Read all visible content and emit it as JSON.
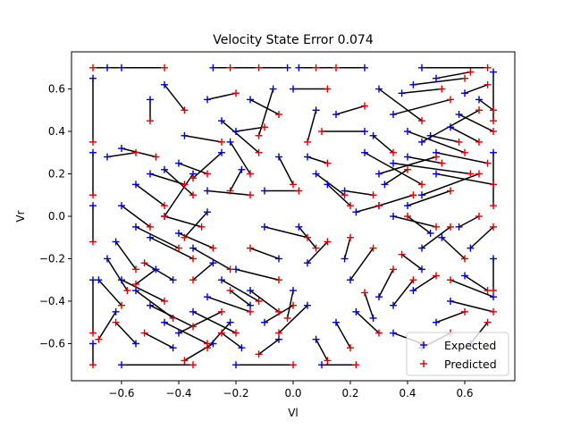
{
  "chart_data": {
    "type": "scatter",
    "title": "Velocity State Error 0.074",
    "xlabel": "Vl",
    "ylabel": "Vr",
    "xlim": [
      -0.775,
      0.775
    ],
    "ylim": [
      -0.775,
      0.775
    ],
    "xticks": [
      "−0.6",
      "−0.4",
      "−0.2",
      "0.0",
      "0.2",
      "0.4",
      "0.6"
    ],
    "yticks": [
      "−0.6",
      "−0.4",
      "−0.2",
      "0.0",
      "0.2",
      "0.4",
      "0.6"
    ],
    "xtick_values": [
      -0.6,
      -0.4,
      -0.2,
      0.0,
      0.2,
      0.4,
      0.6
    ],
    "ytick_values": [
      -0.6,
      -0.4,
      -0.2,
      0.0,
      0.2,
      0.4,
      0.6
    ],
    "grid": false,
    "legend_position": "bottom-right",
    "colors": {
      "expected": "#0000cc",
      "predicted": "#dd0000",
      "connector": "#000000"
    },
    "series": [
      {
        "name": "Expected",
        "marker": "+"
      },
      {
        "name": "Predicted",
        "marker": "+"
      }
    ],
    "pairs": [
      [
        -0.7,
        0.65,
        -0.7,
        0.35
      ],
      [
        -0.6,
        0.7,
        -0.7,
        0.7
      ],
      [
        -0.65,
        0.7,
        -0.45,
        0.7
      ],
      [
        -0.28,
        0.7,
        -0.12,
        0.7
      ],
      [
        -0.02,
        0.7,
        -0.22,
        0.7
      ],
      [
        0.02,
        0.7,
        0.15,
        0.7
      ],
      [
        0.25,
        0.7,
        0.08,
        0.7
      ],
      [
        0.45,
        0.7,
        0.68,
        0.7
      ],
      [
        -0.7,
        0.3,
        -0.7,
        0.1
      ],
      [
        -0.7,
        0.05,
        -0.7,
        -0.12
      ],
      [
        -0.7,
        -0.3,
        -0.7,
        -0.55
      ],
      [
        -0.7,
        -0.6,
        -0.7,
        -0.7
      ],
      [
        -0.6,
        -0.7,
        -0.35,
        -0.7
      ],
      [
        -0.2,
        -0.7,
        0.0,
        -0.7
      ],
      [
        0.1,
        -0.7,
        0.22,
        -0.7
      ],
      [
        0.7,
        0.68,
        0.7,
        0.45
      ],
      [
        0.7,
        0.3,
        0.7,
        0.05
      ],
      [
        0.7,
        -0.2,
        0.7,
        -0.35
      ],
      [
        0.7,
        -0.38,
        0.55,
        -0.3
      ],
      [
        -0.5,
        0.55,
        -0.5,
        0.45
      ],
      [
        -0.45,
        0.62,
        -0.38,
        0.5
      ],
      [
        -0.3,
        0.55,
        -0.2,
        0.58
      ],
      [
        -0.25,
        0.45,
        -0.12,
        0.3
      ],
      [
        -0.15,
        0.55,
        -0.05,
        0.48
      ],
      [
        -0.07,
        0.6,
        -0.12,
        0.38
      ],
      [
        0.0,
        0.6,
        0.12,
        0.6
      ],
      [
        0.08,
        0.5,
        0.05,
        0.35
      ],
      [
        0.15,
        0.48,
        0.25,
        0.52
      ],
      [
        0.25,
        0.4,
        0.1,
        0.4
      ],
      [
        0.3,
        0.6,
        0.45,
        0.45
      ],
      [
        0.35,
        0.48,
        0.55,
        0.55
      ],
      [
        0.4,
        0.4,
        0.6,
        0.3
      ],
      [
        0.45,
        0.35,
        0.65,
        0.5
      ],
      [
        0.5,
        0.3,
        0.68,
        0.25
      ],
      [
        0.5,
        0.2,
        0.7,
        0.15
      ],
      [
        0.35,
        0.25,
        0.62,
        0.2
      ],
      [
        0.3,
        0.2,
        0.5,
        0.28
      ],
      [
        0.25,
        0.3,
        0.45,
        0.15
      ],
      [
        0.45,
        0.1,
        0.65,
        0.2
      ],
      [
        0.4,
        0.05,
        0.55,
        0.12
      ],
      [
        0.35,
        0.0,
        0.5,
        -0.05
      ],
      [
        0.3,
        0.05,
        0.42,
        0.1
      ],
      [
        0.22,
        0.02,
        0.3,
        0.05
      ],
      [
        0.18,
        0.12,
        0.28,
        0.1
      ],
      [
        -0.6,
        0.32,
        -0.48,
        0.28
      ],
      [
        -0.65,
        0.28,
        -0.55,
        0.3
      ],
      [
        -0.55,
        0.15,
        -0.45,
        0.05
      ],
      [
        -0.5,
        0.2,
        -0.38,
        0.15
      ],
      [
        -0.45,
        0.22,
        -0.35,
        0.1
      ],
      [
        -0.4,
        0.25,
        -0.3,
        0.2
      ],
      [
        -0.35,
        0.2,
        -0.45,
        0.0
      ],
      [
        -0.25,
        0.3,
        -0.35,
        0.18
      ],
      [
        -0.18,
        0.22,
        -0.22,
        0.12
      ],
      [
        -0.3,
        0.12,
        -0.15,
        0.1
      ],
      [
        -0.1,
        0.12,
        0.02,
        0.12
      ],
      [
        0.05,
        0.28,
        0.12,
        0.25
      ],
      [
        0.08,
        0.2,
        0.18,
        0.1
      ],
      [
        0.12,
        0.15,
        0.2,
        0.05
      ],
      [
        -0.6,
        0.05,
        -0.5,
        -0.05
      ],
      [
        -0.55,
        -0.05,
        -0.4,
        -0.15
      ],
      [
        -0.5,
        -0.1,
        -0.35,
        -0.2
      ],
      [
        -0.45,
        0.0,
        -0.32,
        -0.05
      ],
      [
        -0.4,
        -0.08,
        -0.28,
        -0.15
      ],
      [
        -0.35,
        -0.15,
        -0.22,
        -0.25
      ],
      [
        -0.3,
        0.02,
        -0.38,
        -0.1
      ],
      [
        -0.62,
        -0.12,
        -0.55,
        -0.25
      ],
      [
        -0.65,
        -0.2,
        -0.58,
        -0.35
      ],
      [
        -0.6,
        -0.3,
        -0.45,
        -0.4
      ],
      [
        -0.55,
        -0.35,
        -0.42,
        -0.48
      ],
      [
        -0.5,
        -0.42,
        -0.35,
        -0.52
      ],
      [
        -0.45,
        -0.5,
        -0.3,
        -0.6
      ],
      [
        -0.4,
        -0.55,
        -0.25,
        -0.45
      ],
      [
        -0.35,
        -0.45,
        -0.2,
        -0.55
      ],
      [
        -0.3,
        -0.38,
        -0.15,
        -0.45
      ],
      [
        -0.25,
        -0.3,
        -0.12,
        -0.4
      ],
      [
        -0.2,
        -0.25,
        -0.05,
        -0.3
      ],
      [
        -0.15,
        -0.35,
        -0.05,
        -0.45
      ],
      [
        -0.1,
        -0.5,
        0.0,
        -0.42
      ],
      [
        -0.05,
        -0.58,
        -0.12,
        -0.65
      ],
      [
        -0.18,
        -0.62,
        -0.25,
        -0.55
      ],
      [
        -0.22,
        -0.5,
        -0.3,
        -0.62
      ],
      [
        -0.28,
        -0.6,
        -0.38,
        -0.68
      ],
      [
        -0.42,
        -0.62,
        -0.52,
        -0.55
      ],
      [
        -0.55,
        -0.6,
        -0.62,
        -0.5
      ],
      [
        -0.62,
        -0.45,
        -0.68,
        -0.58
      ],
      [
        -0.68,
        -0.3,
        -0.6,
        -0.42
      ],
      [
        -0.05,
        -0.2,
        -0.15,
        -0.15
      ],
      [
        -0.1,
        -0.05,
        0.05,
        -0.1
      ],
      [
        0.02,
        -0.05,
        0.08,
        -0.15
      ],
      [
        0.05,
        -0.22,
        0.12,
        -0.12
      ],
      [
        0.18,
        -0.2,
        0.2,
        -0.1
      ],
      [
        0.2,
        -0.3,
        0.28,
        -0.15
      ],
      [
        0.3,
        -0.38,
        0.35,
        -0.25
      ],
      [
        0.35,
        -0.42,
        0.42,
        -0.3
      ],
      [
        0.42,
        -0.35,
        0.5,
        -0.28
      ],
      [
        0.45,
        -0.25,
        0.38,
        -0.18
      ],
      [
        0.45,
        -0.15,
        0.55,
        -0.05
      ],
      [
        0.52,
        -0.1,
        0.6,
        -0.2
      ],
      [
        0.58,
        -0.05,
        0.65,
        0.0
      ],
      [
        0.6,
        -0.28,
        0.68,
        -0.35
      ],
      [
        0.55,
        -0.4,
        0.7,
        -0.45
      ],
      [
        0.22,
        -0.45,
        0.3,
        -0.55
      ],
      [
        0.15,
        -0.5,
        0.2,
        -0.62
      ],
      [
        0.08,
        -0.58,
        0.12,
        -0.68
      ],
      [
        0.0,
        -0.35,
        -0.02,
        -0.48
      ],
      [
        0.05,
        -0.42,
        -0.05,
        -0.55
      ],
      [
        0.28,
        -0.48,
        0.25,
        -0.36
      ],
      [
        0.35,
        -0.55,
        0.45,
        -0.6
      ],
      [
        0.45,
        -0.62,
        0.55,
        -0.55
      ],
      [
        0.5,
        -0.5,
        0.6,
        -0.45
      ],
      [
        0.62,
        -0.6,
        0.68,
        -0.5
      ],
      [
        0.62,
        -0.15,
        0.7,
        -0.05
      ],
      [
        -0.38,
        0.38,
        -0.25,
        0.35
      ],
      [
        -0.2,
        0.4,
        -0.1,
        0.42
      ],
      [
        -0.22,
        0.35,
        -0.15,
        0.2
      ],
      [
        -0.05,
        0.28,
        0.0,
        0.15
      ],
      [
        0.28,
        0.38,
        0.35,
        0.3
      ],
      [
        0.38,
        0.58,
        0.52,
        0.6
      ],
      [
        0.42,
        0.62,
        0.6,
        0.65
      ],
      [
        0.55,
        0.42,
        0.65,
        0.35
      ],
      [
        0.6,
        0.58,
        0.68,
        0.62
      ],
      [
        0.5,
        0.65,
        0.62,
        0.68
      ],
      [
        0.65,
        0.55,
        0.7,
        0.5
      ],
      [
        0.58,
        0.48,
        0.7,
        0.4
      ],
      [
        0.48,
        0.38,
        0.58,
        0.35
      ],
      [
        0.4,
        0.28,
        0.52,
        0.25
      ],
      [
        0.32,
        0.15,
        0.4,
        0.22
      ],
      [
        0.48,
        -0.08,
        0.4,
        0.0
      ],
      [
        -0.48,
        -0.25,
        -0.55,
        -0.32
      ],
      [
        -0.42,
        -0.3,
        -0.52,
        -0.22
      ],
      [
        -0.28,
        -0.22,
        -0.35,
        -0.3
      ],
      [
        -0.15,
        -0.42,
        -0.22,
        -0.35
      ]
    ]
  }
}
